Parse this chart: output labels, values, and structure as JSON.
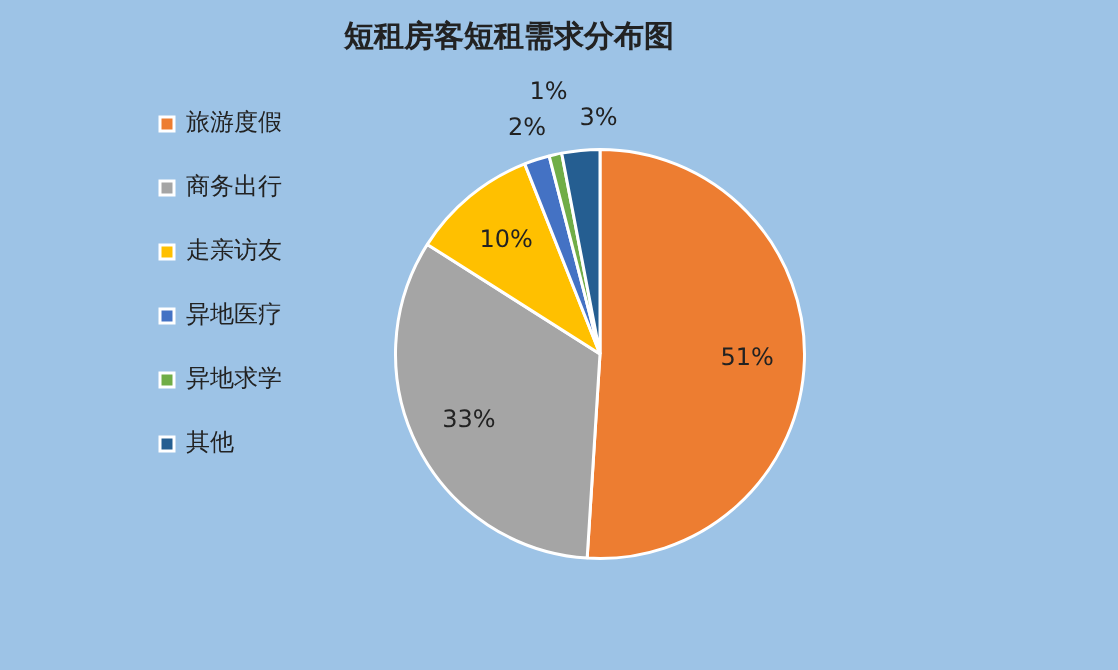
{
  "chart_data": {
    "type": "pie",
    "title": "短租房客短租需求分布图",
    "categories": [
      "旅游度假",
      "商务出行",
      "走亲访友",
      "异地医疗",
      "异地求学",
      "其他"
    ],
    "values": [
      51,
      33,
      10,
      2,
      1,
      3
    ],
    "colors": [
      "#ed7d31",
      "#a5a5a5",
      "#ffc000",
      "#4472c4",
      "#70ad47",
      "#255e91"
    ],
    "value_labels": [
      "51%",
      "33%",
      "10%",
      "2%",
      "1%",
      "3%"
    ],
    "legend": "left"
  }
}
